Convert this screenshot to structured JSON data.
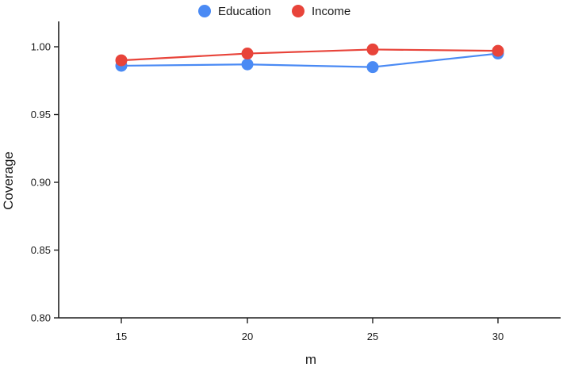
{
  "chart_data": {
    "type": "line",
    "xlabel": "m",
    "ylabel": "Coverage",
    "x": [
      15,
      20,
      25,
      30
    ],
    "xticks": [
      "15",
      "20",
      "25",
      "30"
    ],
    "ylim": [
      0.8,
      1.02
    ],
    "yticks": [
      "0.80",
      "0.85",
      "0.90",
      "0.95",
      "1.00"
    ],
    "grid": false,
    "legend_position": "top-center",
    "series": [
      {
        "name": "Education",
        "color": "#4a8af4",
        "values": [
          0.986,
          0.987,
          0.985,
          0.995
        ]
      },
      {
        "name": "Income",
        "color": "#e8443a",
        "values": [
          0.99,
          0.995,
          0.998,
          0.997
        ]
      }
    ]
  }
}
